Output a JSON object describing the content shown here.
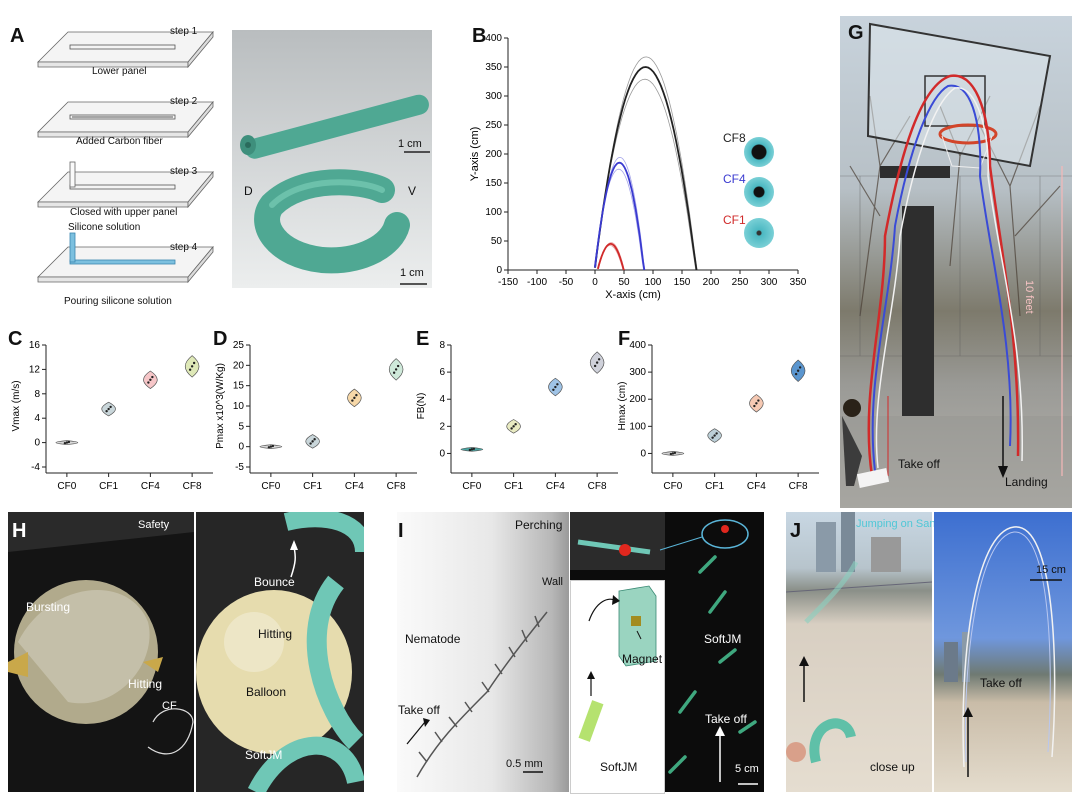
{
  "panels": {
    "A": {
      "label": "A",
      "steps": [
        {
          "step": "step 1",
          "caption": "Lower panel"
        },
        {
          "step": "step 2",
          "caption": "Added Carbon fiber"
        },
        {
          "step": "step 3",
          "caption": "Closed with upper panel"
        },
        {
          "step": "step 4",
          "caption": "Pouring silicone solution",
          "extra": "Silicone solution"
        }
      ],
      "photo_scale_top": "1 cm",
      "photo_scale_bottom": "1 cm",
      "d_label": "D",
      "v_label": "V"
    },
    "B": {
      "label": "B"
    },
    "C": {
      "label": "C"
    },
    "D": {
      "label": "D"
    },
    "E": {
      "label": "E"
    },
    "F": {
      "label": "F"
    },
    "G": {
      "label": "G",
      "take_off": "Take off",
      "landing": "Landing",
      "height": "10 feet"
    },
    "H": {
      "label": "H",
      "safety": "Safety",
      "bursting": "Bursting",
      "hitting1": "Hitting",
      "cf": "CF",
      "bounce": "Bounce",
      "hitting2": "Hitting",
      "balloon": "Balloon",
      "softjm": "SoftJM"
    },
    "I": {
      "label": "I",
      "perching": "Perching",
      "wall": "Wall",
      "nematode": "Nematode",
      "take_off1": "Take off",
      "scale1": "0.5 mm",
      "magnet": "Magnet",
      "softjm_inset": "SoftJM",
      "softjm": "SoftJM",
      "take_off2": "Take off",
      "scale2": "5 cm"
    },
    "J": {
      "label": "J",
      "title": "Jumping on Sand",
      "scale": "15 cm",
      "take_off": "Take off",
      "close_up": "close up"
    }
  },
  "chart_data": [
    {
      "id": "B",
      "type": "line",
      "xlabel": "X-axis (cm)",
      "ylabel": "Y-axis (cm)",
      "xlim": [
        -150,
        350
      ],
      "ylim": [
        0,
        400
      ],
      "xticks": [
        -150,
        -100,
        -50,
        0,
        50,
        100,
        150,
        200,
        250,
        300,
        350
      ],
      "yticks": [
        0,
        50,
        100,
        150,
        200,
        250,
        300,
        350,
        400
      ],
      "legend_location": "right",
      "series": [
        {
          "name": "CF8",
          "color": "#222222",
          "x_start": 0,
          "x_end": 175,
          "peak_x": 87,
          "peak_y": 350
        },
        {
          "name": "CF4",
          "color": "#3a3ad0",
          "x_start": 0,
          "x_end": 85,
          "peak_x": 42,
          "peak_y": 185
        },
        {
          "name": "CF1",
          "color": "#d02a2a",
          "x_start": 5,
          "x_end": 50,
          "peak_x": 27,
          "peak_y": 45
        }
      ]
    },
    {
      "id": "C",
      "type": "violin",
      "ylabel": "Vmax (m/s)",
      "ylim": [
        -4,
        16
      ],
      "yticks": [
        -4,
        0,
        4,
        8,
        12,
        16
      ],
      "categories": [
        "CF0",
        "CF1",
        "CF4",
        "CF8"
      ],
      "values": [
        0,
        5.5,
        10.3,
        12.5
      ],
      "colors": [
        "#d9d9d9",
        "#c9d6da",
        "#f6c6c8",
        "#dfe9b8"
      ]
    },
    {
      "id": "D",
      "type": "violin",
      "ylabel": "Pmax x10^3(W/Kg)",
      "ylim": [
        -5,
        25
      ],
      "yticks": [
        -5,
        0,
        5,
        10,
        15,
        20,
        25
      ],
      "categories": [
        "CF0",
        "CF1",
        "CF4",
        "CF8"
      ],
      "values": [
        0,
        1.3,
        12,
        19
      ],
      "colors": [
        "#d9d9d9",
        "#c9d6da",
        "#f7d8a8",
        "#cfe9da"
      ]
    },
    {
      "id": "E",
      "type": "violin",
      "ylabel": "FB(N)",
      "ylim": [
        -1,
        8
      ],
      "yticks": [
        0,
        2,
        4,
        6,
        8
      ],
      "categories": [
        "CF0",
        "CF1",
        "CF4",
        "CF8"
      ],
      "values": [
        0.3,
        2.0,
        4.9,
        6.7
      ],
      "colors": [
        "#4aa6a3",
        "#e9ebc2",
        "#9fc3e6",
        "#cfd1da"
      ]
    },
    {
      "id": "F",
      "type": "violin",
      "ylabel": "Hmax (cm)",
      "ylim": [
        -50,
        400
      ],
      "yticks": [
        0,
        100,
        200,
        300,
        400
      ],
      "categories": [
        "CF0",
        "CF1",
        "CF4",
        "CF8"
      ],
      "values": [
        0,
        66,
        185,
        305
      ],
      "colors": [
        "#cfcfcf",
        "#bcd0d8",
        "#f6c9b3",
        "#5b96cf"
      ]
    }
  ]
}
